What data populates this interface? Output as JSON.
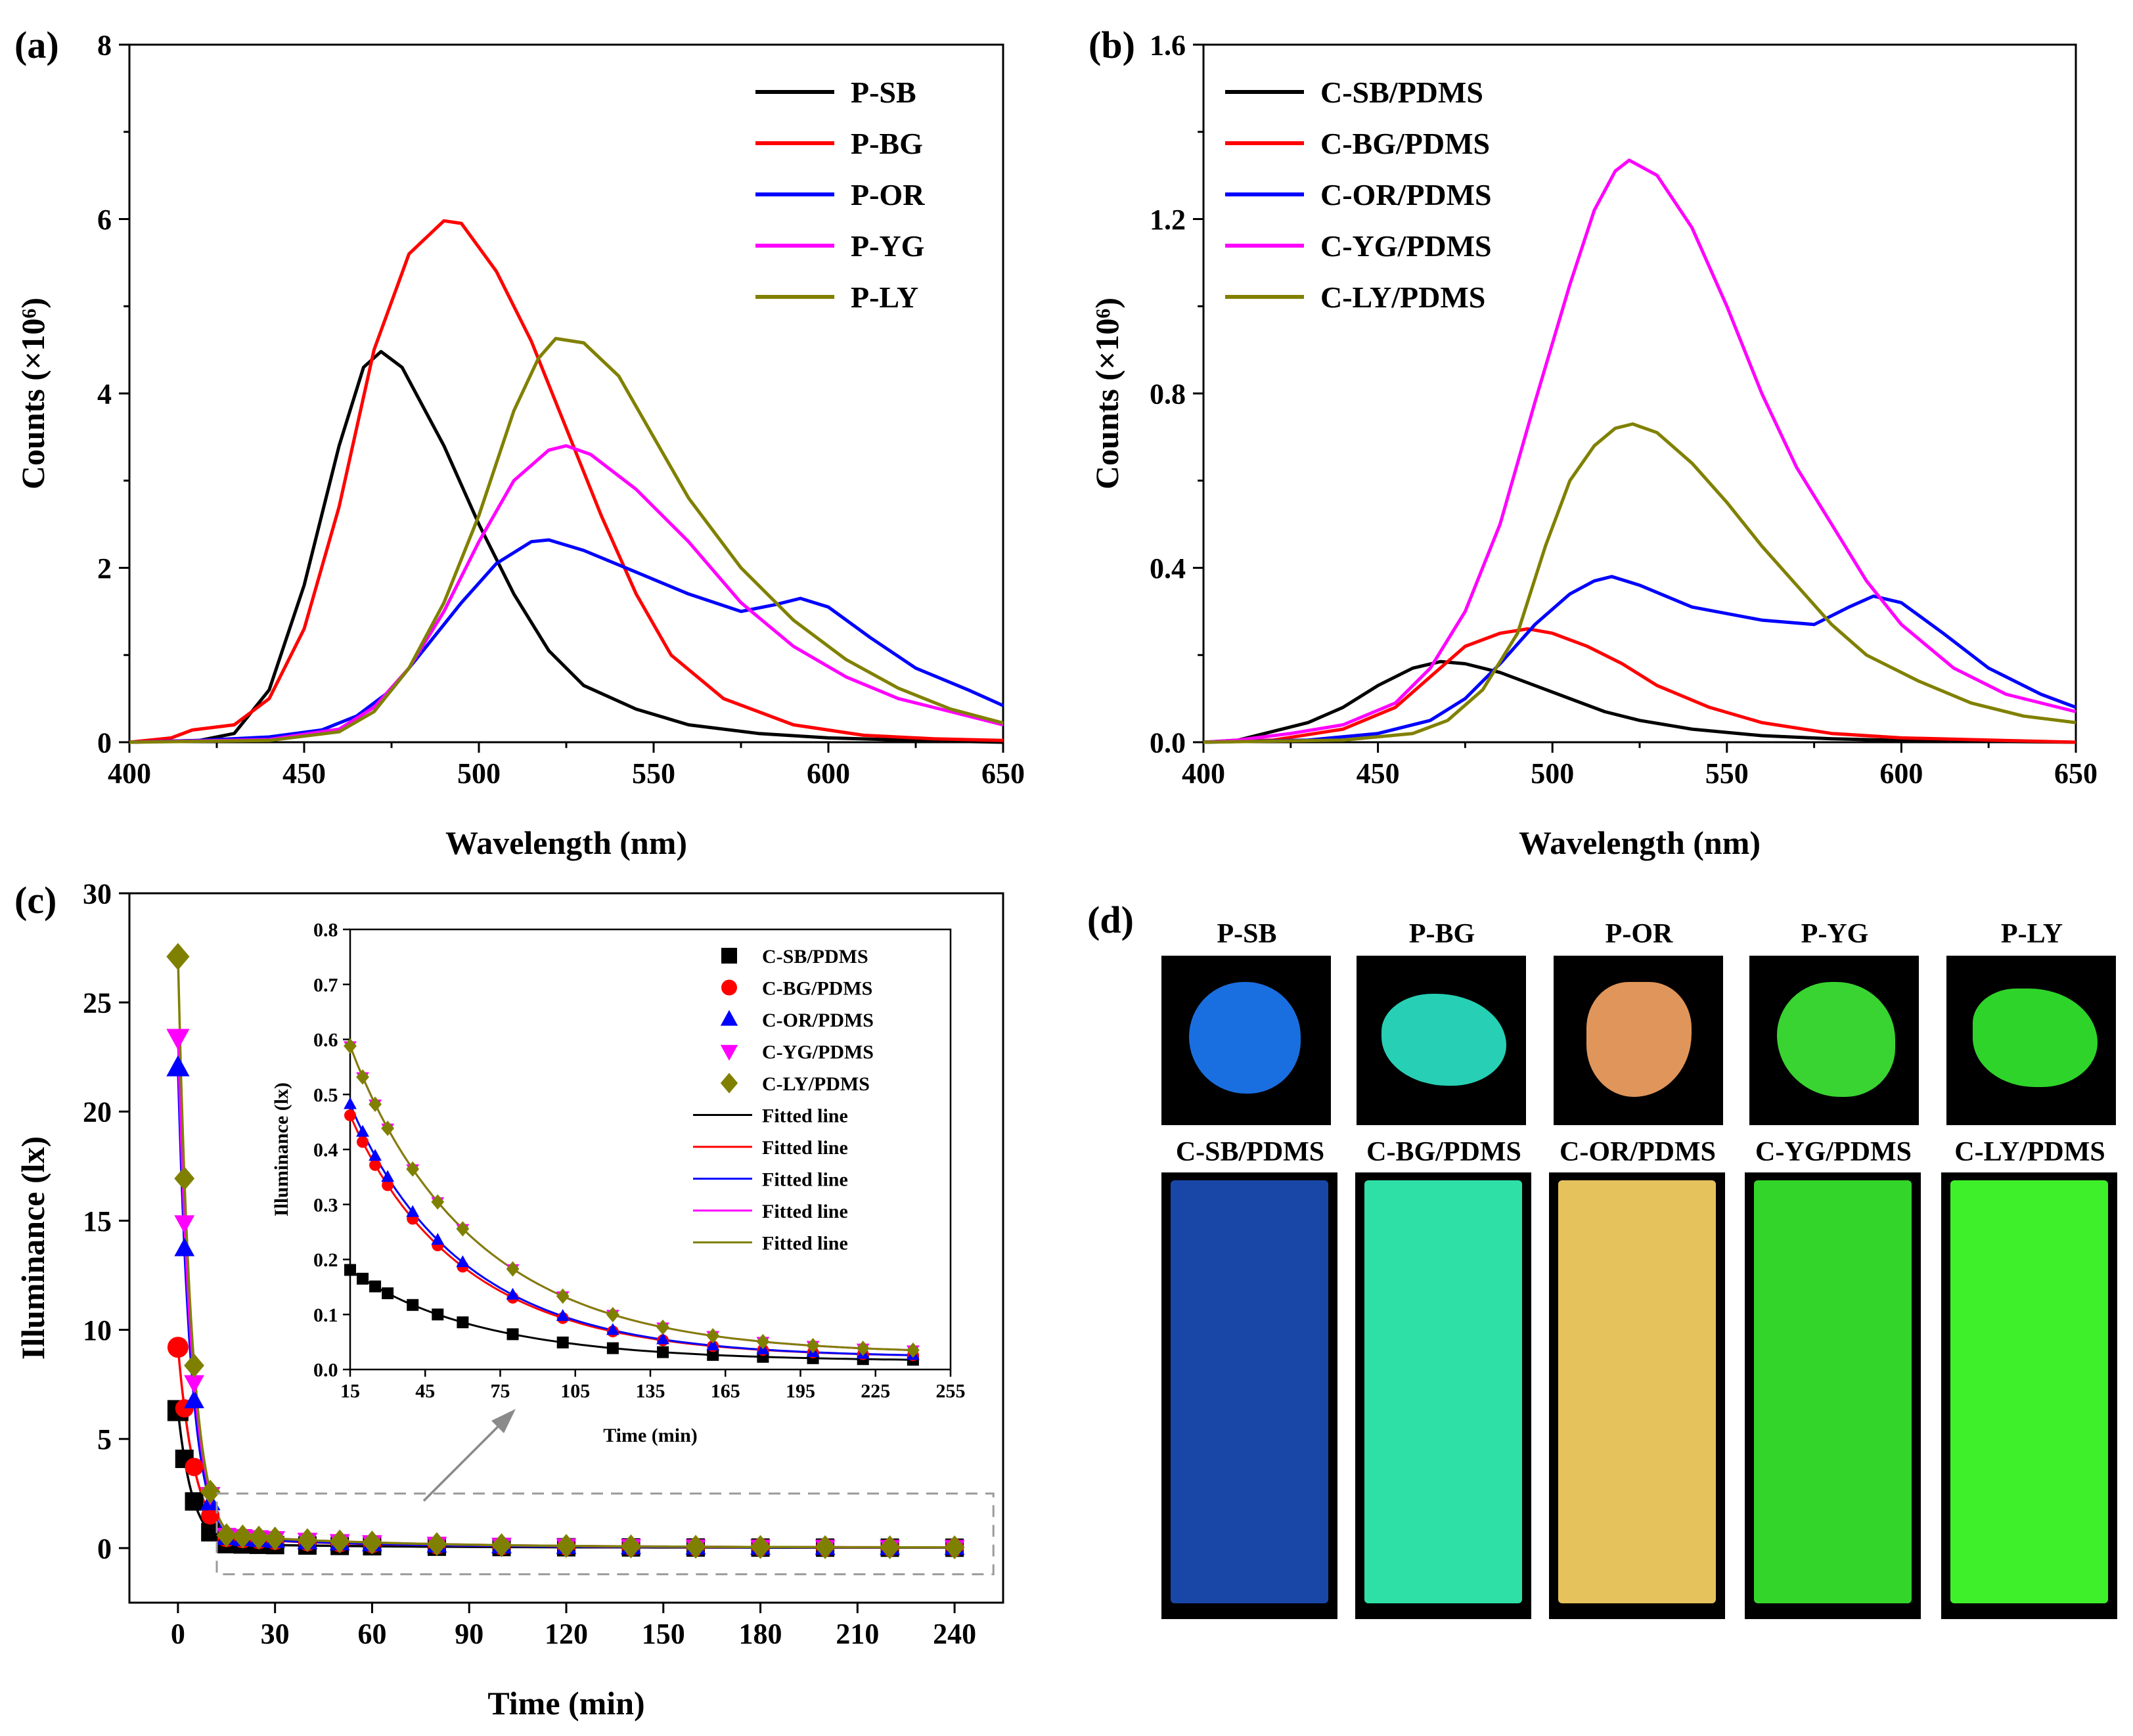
{
  "chart_data": [
    {
      "id": "a",
      "type": "line",
      "panel_label": "(a)",
      "xlabel": "Wavelength (nm)",
      "ylabel": "Counts (×10⁶)",
      "xlim": [
        400,
        650
      ],
      "ylim": [
        0,
        8
      ],
      "xticks": [
        400,
        450,
        500,
        550,
        600,
        650
      ],
      "yticks": [
        0,
        2,
        4,
        6,
        8
      ],
      "legend": "top-right",
      "series": [
        {
          "name": "P-SB",
          "color": "#000000",
          "points": [
            [
              400,
              0
            ],
            [
              420,
              0.02
            ],
            [
              430,
              0.1
            ],
            [
              440,
              0.6
            ],
            [
              450,
              1.8
            ],
            [
              460,
              3.4
            ],
            [
              467,
              4.3
            ],
            [
              472,
              4.48
            ],
            [
              478,
              4.3
            ],
            [
              490,
              3.4
            ],
            [
              500,
              2.5
            ],
            [
              510,
              1.7
            ],
            [
              520,
              1.05
            ],
            [
              530,
              0.65
            ],
            [
              545,
              0.38
            ],
            [
              560,
              0.2
            ],
            [
              580,
              0.1
            ],
            [
              600,
              0.05
            ],
            [
              625,
              0.02
            ],
            [
              650,
              0
            ]
          ]
        },
        {
          "name": "P-BG",
          "color": "#ff0000",
          "points": [
            [
              400,
              0
            ],
            [
              412,
              0.05
            ],
            [
              418,
              0.14
            ],
            [
              430,
              0.2
            ],
            [
              440,
              0.5
            ],
            [
              450,
              1.3
            ],
            [
              460,
              2.7
            ],
            [
              470,
              4.5
            ],
            [
              480,
              5.6
            ],
            [
              490,
              5.98
            ],
            [
              495,
              5.95
            ],
            [
              505,
              5.4
            ],
            [
              515,
              4.6
            ],
            [
              525,
              3.6
            ],
            [
              535,
              2.6
            ],
            [
              545,
              1.7
            ],
            [
              555,
              1.0
            ],
            [
              570,
              0.5
            ],
            [
              590,
              0.2
            ],
            [
              610,
              0.08
            ],
            [
              630,
              0.04
            ],
            [
              650,
              0.02
            ]
          ]
        },
        {
          "name": "P-OR",
          "color": "#0000ff",
          "points": [
            [
              400,
              0
            ],
            [
              420,
              0.02
            ],
            [
              440,
              0.06
            ],
            [
              455,
              0.14
            ],
            [
              465,
              0.3
            ],
            [
              475,
              0.6
            ],
            [
              485,
              1.1
            ],
            [
              495,
              1.6
            ],
            [
              505,
              2.05
            ],
            [
              515,
              2.3
            ],
            [
              520,
              2.32
            ],
            [
              530,
              2.2
            ],
            [
              545,
              1.95
            ],
            [
              560,
              1.7
            ],
            [
              575,
              1.5
            ],
            [
              585,
              1.58
            ],
            [
              592,
              1.65
            ],
            [
              600,
              1.55
            ],
            [
              612,
              1.2
            ],
            [
              625,
              0.85
            ],
            [
              640,
              0.6
            ],
            [
              650,
              0.42
            ]
          ]
        },
        {
          "name": "P-YG",
          "color": "#ff00ff",
          "points": [
            [
              400,
              0
            ],
            [
              440,
              0.03
            ],
            [
              460,
              0.15
            ],
            [
              470,
              0.4
            ],
            [
              480,
              0.85
            ],
            [
              490,
              1.5
            ],
            [
              500,
              2.3
            ],
            [
              510,
              3.0
            ],
            [
              520,
              3.35
            ],
            [
              525,
              3.4
            ],
            [
              532,
              3.3
            ],
            [
              545,
              2.9
            ],
            [
              560,
              2.3
            ],
            [
              575,
              1.6
            ],
            [
              590,
              1.1
            ],
            [
              605,
              0.75
            ],
            [
              620,
              0.5
            ],
            [
              635,
              0.35
            ],
            [
              650,
              0.2
            ]
          ]
        },
        {
          "name": "P-LY",
          "color": "#808000",
          "points": [
            [
              400,
              0
            ],
            [
              440,
              0.02
            ],
            [
              460,
              0.12
            ],
            [
              470,
              0.35
            ],
            [
              480,
              0.85
            ],
            [
              490,
              1.6
            ],
            [
              500,
              2.6
            ],
            [
              510,
              3.8
            ],
            [
              517,
              4.4
            ],
            [
              522,
              4.63
            ],
            [
              530,
              4.58
            ],
            [
              540,
              4.2
            ],
            [
              550,
              3.5
            ],
            [
              560,
              2.8
            ],
            [
              575,
              2.0
            ],
            [
              590,
              1.4
            ],
            [
              605,
              0.95
            ],
            [
              620,
              0.62
            ],
            [
              635,
              0.38
            ],
            [
              650,
              0.22
            ]
          ]
        }
      ]
    },
    {
      "id": "b",
      "type": "line",
      "panel_label": "(b)",
      "xlabel": "Wavelength (nm)",
      "ylabel": "Counts (×10⁶)",
      "xlim": [
        400,
        650
      ],
      "ylim": [
        0,
        1.6
      ],
      "xticks": [
        400,
        450,
        500,
        550,
        600,
        650
      ],
      "yticks": [
        0.0,
        0.4,
        0.8,
        1.2,
        1.6
      ],
      "legend": "top-left",
      "series": [
        {
          "name": "C-SB/PDMS",
          "color": "#000000",
          "points": [
            [
              400,
              0
            ],
            [
              410,
              0.005
            ],
            [
              420,
              0.025
            ],
            [
              430,
              0.045
            ],
            [
              440,
              0.08
            ],
            [
              450,
              0.13
            ],
            [
              460,
              0.17
            ],
            [
              468,
              0.185
            ],
            [
              475,
              0.18
            ],
            [
              485,
              0.16
            ],
            [
              495,
              0.13
            ],
            [
              505,
              0.1
            ],
            [
              515,
              0.07
            ],
            [
              525,
              0.05
            ],
            [
              540,
              0.03
            ],
            [
              560,
              0.015
            ],
            [
              580,
              0.008
            ],
            [
              600,
              0.004
            ],
            [
              650,
              0
            ]
          ]
        },
        {
          "name": "C-BG/PDMS",
          "color": "#ff0000",
          "points": [
            [
              400,
              0
            ],
            [
              420,
              0.005
            ],
            [
              440,
              0.03
            ],
            [
              455,
              0.08
            ],
            [
              465,
              0.15
            ],
            [
              475,
              0.22
            ],
            [
              485,
              0.25
            ],
            [
              493,
              0.26
            ],
            [
              500,
              0.25
            ],
            [
              510,
              0.22
            ],
            [
              520,
              0.18
            ],
            [
              530,
              0.13
            ],
            [
              545,
              0.08
            ],
            [
              560,
              0.045
            ],
            [
              580,
              0.02
            ],
            [
              600,
              0.01
            ],
            [
              650,
              0
            ]
          ]
        },
        {
          "name": "C-OR/PDMS",
          "color": "#0000ff",
          "points": [
            [
              400,
              0
            ],
            [
              430,
              0.005
            ],
            [
              450,
              0.02
            ],
            [
              465,
              0.05
            ],
            [
              475,
              0.1
            ],
            [
              485,
              0.18
            ],
            [
              495,
              0.27
            ],
            [
              505,
              0.34
            ],
            [
              512,
              0.37
            ],
            [
              517,
              0.38
            ],
            [
              525,
              0.36
            ],
            [
              540,
              0.31
            ],
            [
              560,
              0.28
            ],
            [
              575,
              0.27
            ],
            [
              585,
              0.31
            ],
            [
              592,
              0.335
            ],
            [
              600,
              0.32
            ],
            [
              612,
              0.25
            ],
            [
              625,
              0.17
            ],
            [
              640,
              0.11
            ],
            [
              650,
              0.08
            ]
          ]
        },
        {
          "name": "C-YG/PDMS",
          "color": "#ff00ff",
          "points": [
            [
              400,
              0
            ],
            [
              410,
              0.005
            ],
            [
              425,
              0.02
            ],
            [
              440,
              0.04
            ],
            [
              455,
              0.09
            ],
            [
              465,
              0.17
            ],
            [
              475,
              0.3
            ],
            [
              485,
              0.5
            ],
            [
              495,
              0.78
            ],
            [
              505,
              1.05
            ],
            [
              512,
              1.22
            ],
            [
              518,
              1.31
            ],
            [
              522,
              1.335
            ],
            [
              530,
              1.3
            ],
            [
              540,
              1.18
            ],
            [
              550,
              1.0
            ],
            [
              560,
              0.8
            ],
            [
              570,
              0.63
            ],
            [
              580,
              0.5
            ],
            [
              590,
              0.37
            ],
            [
              600,
              0.27
            ],
            [
              615,
              0.17
            ],
            [
              630,
              0.11
            ],
            [
              650,
              0.07
            ]
          ]
        },
        {
          "name": "C-LY/PDMS",
          "color": "#808000",
          "points": [
            [
              400,
              0
            ],
            [
              440,
              0.005
            ],
            [
              460,
              0.02
            ],
            [
              470,
              0.05
            ],
            [
              480,
              0.12
            ],
            [
              490,
              0.25
            ],
            [
              498,
              0.45
            ],
            [
              505,
              0.6
            ],
            [
              512,
              0.68
            ],
            [
              518,
              0.72
            ],
            [
              523,
              0.73
            ],
            [
              530,
              0.71
            ],
            [
              540,
              0.64
            ],
            [
              550,
              0.55
            ],
            [
              560,
              0.45
            ],
            [
              570,
              0.36
            ],
            [
              580,
              0.27
            ],
            [
              590,
              0.2
            ],
            [
              605,
              0.14
            ],
            [
              620,
              0.09
            ],
            [
              635,
              0.06
            ],
            [
              650,
              0.045
            ]
          ]
        }
      ]
    },
    {
      "id": "c",
      "type": "scatter",
      "panel_label": "(c)",
      "xlabel": "Time (min)",
      "ylabel": "Illuminance (lx)",
      "xlim": [
        -15,
        255
      ],
      "ylim": [
        -2.5,
        30
      ],
      "xticks": [
        0,
        30,
        60,
        90,
        120,
        150,
        180,
        210,
        240
      ],
      "yticks": [
        0,
        5,
        10,
        15,
        20,
        25,
        30
      ],
      "legend": "inset top-right",
      "x": [
        0,
        2,
        5,
        10,
        15,
        20,
        25,
        30,
        40,
        50,
        60,
        80,
        100,
        120,
        140,
        160,
        180,
        200,
        220,
        240
      ],
      "series": [
        {
          "name": "C-SB/PDMS",
          "color": "#000000",
          "marker": "square",
          "fit_label": "Fitted line",
          "y0": 6.3,
          "a": 0.16,
          "tau": 55,
          "c": 0.015
        },
        {
          "name": "C-BG/PDMS",
          "color": "#ff0000",
          "marker": "circle",
          "fit_label": "Fitted line",
          "y0": 9.2,
          "a": 0.42,
          "tau": 48,
          "c": 0.022
        },
        {
          "name": "C-OR/PDMS",
          "color": "#0000ff",
          "marker": "triangle-up",
          "fit_label": "Fitted line",
          "y0": 22.0,
          "a": 0.44,
          "tau": 48,
          "c": 0.022
        },
        {
          "name": "C-YG/PDMS",
          "color": "#ff00ff",
          "marker": "triangle-down",
          "fit_label": "Fitted line",
          "y0": 23.4,
          "a": 0.54,
          "tau": 52,
          "c": 0.028
        },
        {
          "name": "C-LY/PDMS",
          "color": "#808000",
          "marker": "diamond",
          "fit_label": "Fitted line",
          "y0": 27.1,
          "a": 0.54,
          "tau": 52,
          "c": 0.028
        }
      ],
      "inset": {
        "xlabel": "Time (min)",
        "ylabel": "Illuminance (lx)",
        "xlim": [
          15,
          255
        ],
        "ylim": [
          0,
          0.8
        ],
        "xticks": [
          15,
          45,
          75,
          105,
          135,
          165,
          195,
          225,
          255
        ],
        "yticks": [
          0.0,
          0.1,
          0.2,
          0.3,
          0.4,
          0.5,
          0.6,
          0.7,
          0.8
        ],
        "x": [
          15,
          20,
          25,
          30,
          40,
          50,
          60,
          80,
          100,
          120,
          140,
          160,
          180,
          200,
          220,
          240
        ]
      }
    }
  ],
  "panel_d": {
    "label": "(d)",
    "powders": [
      {
        "name": "P-SB",
        "color": "#1a6fe0"
      },
      {
        "name": "P-BG",
        "color": "#27d0b4"
      },
      {
        "name": "P-OR",
        "color": "#e0955a"
      },
      {
        "name": "P-YG",
        "color": "#39d431"
      },
      {
        "name": "P-LY",
        "color": "#2fd42a"
      }
    ],
    "films": [
      {
        "name": "C-SB/PDMS",
        "color": "#1947a8"
      },
      {
        "name": "C-BG/PDMS",
        "color": "#2ee0a6"
      },
      {
        "name": "C-OR/PDMS",
        "color": "#e6c25c"
      },
      {
        "name": "C-YG/PDMS",
        "color": "#34d52a"
      },
      {
        "name": "C-LY/PDMS",
        "color": "#3ef02a"
      }
    ]
  }
}
